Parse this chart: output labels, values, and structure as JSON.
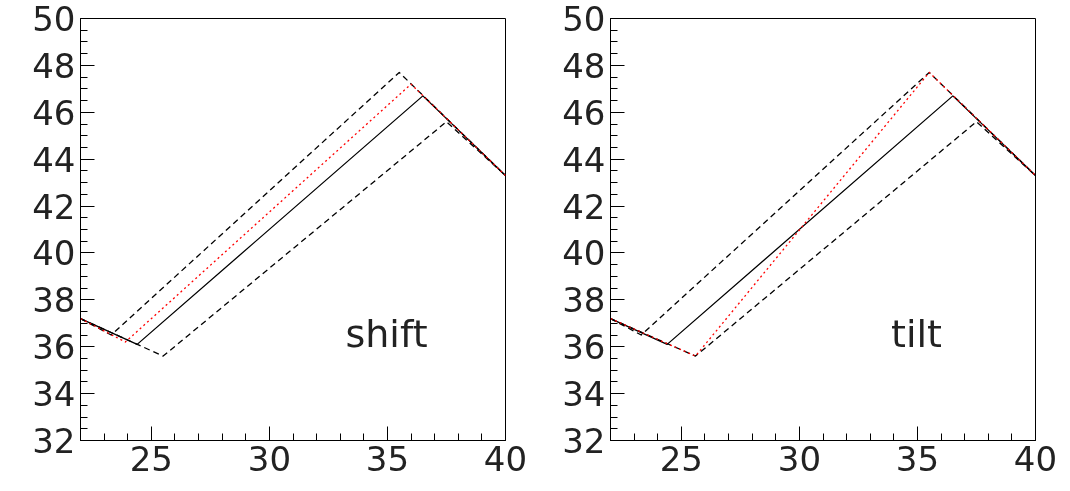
{
  "chart_data": [
    {
      "type": "line",
      "annotations": [
        "shift"
      ],
      "xlim": [
        22,
        40
      ],
      "ylim": [
        32,
        50
      ],
      "xticks": [
        25,
        30,
        35,
        40
      ],
      "yticks": [
        32,
        34,
        36,
        38,
        40,
        42,
        44,
        46,
        48,
        50
      ],
      "grid": false,
      "series": [
        {
          "color": "#000000",
          "line_style": "solid",
          "x": [
            22,
            24.4,
            36.5,
            40
          ],
          "values": [
            37.2,
            36.1,
            46.7,
            43.3
          ]
        },
        {
          "color": "#000000",
          "line_style": "dashed",
          "x": [
            22,
            23.3,
            35.5,
            40
          ],
          "values": [
            37.2,
            36.5,
            47.7,
            43.3
          ]
        },
        {
          "color": "#000000",
          "line_style": "dashed",
          "x": [
            22,
            25.5,
            37.5,
            40
          ],
          "values": [
            37.2,
            35.6,
            45.6,
            43.3
          ]
        },
        {
          "color": "#ff0000",
          "line_style": "dotted",
          "x": [
            22,
            23.9,
            36.0,
            40
          ],
          "values": [
            37.2,
            36.2,
            47.2,
            43.3
          ]
        }
      ]
    },
    {
      "type": "line",
      "annotations": [
        "tilt"
      ],
      "xlim": [
        22,
        40
      ],
      "ylim": [
        32,
        50
      ],
      "xticks": [
        25,
        30,
        35,
        40
      ],
      "yticks": [
        32,
        34,
        36,
        38,
        40,
        42,
        44,
        46,
        48,
        50
      ],
      "grid": false,
      "series": [
        {
          "color": "#000000",
          "line_style": "solid",
          "x": [
            22,
            24.4,
            36.5,
            40
          ],
          "values": [
            37.2,
            36.1,
            46.7,
            43.3
          ]
        },
        {
          "color": "#000000",
          "line_style": "dashed",
          "x": [
            22,
            23.3,
            35.5,
            40
          ],
          "values": [
            37.2,
            36.5,
            47.7,
            43.3
          ]
        },
        {
          "color": "#000000",
          "line_style": "dashed",
          "x": [
            22,
            25.6,
            37.5,
            40
          ],
          "values": [
            37.2,
            35.6,
            45.6,
            43.3
          ]
        },
        {
          "color": "#ff0000",
          "line_style": "dotted",
          "x": [
            22,
            25.6,
            35.5,
            40
          ],
          "values": [
            37.2,
            35.6,
            47.7,
            43.3
          ]
        }
      ]
    }
  ]
}
